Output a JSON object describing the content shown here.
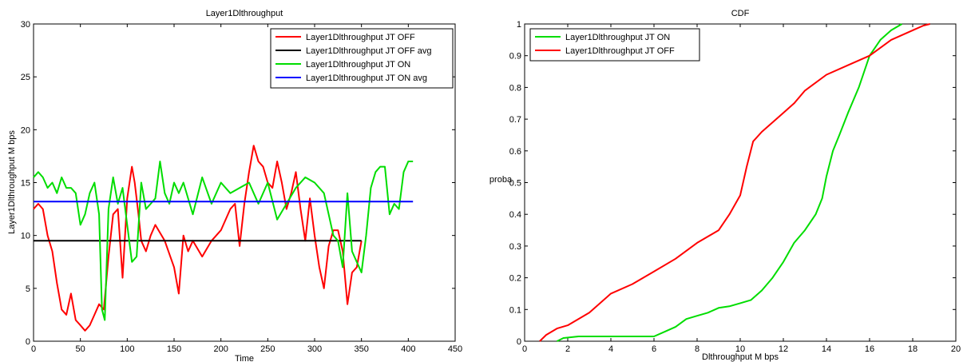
{
  "chart_data": [
    {
      "type": "line",
      "title": "Layer1Dlthroughput",
      "xlabel": "Time",
      "ylabel": "Layer1Dlthroughput M bps",
      "xlim": [
        0,
        450
      ],
      "ylim": [
        0,
        30
      ],
      "xticks": [
        "0",
        "50",
        "100",
        "150",
        "200",
        "250",
        "300",
        "350",
        "400",
        "450"
      ],
      "yticks": [
        "0",
        "5",
        "10",
        "15",
        "20",
        "25",
        "30"
      ],
      "grid": false,
      "legend_position": "top-right",
      "series": [
        {
          "name": "Layer1Dlthroughput JT OFF",
          "color": "#ff0000",
          "x": [
            0,
            5,
            10,
            15,
            20,
            25,
            30,
            35,
            40,
            45,
            50,
            55,
            60,
            65,
            70,
            75,
            80,
            85,
            90,
            95,
            100,
            105,
            108,
            112,
            115,
            120,
            125,
            130,
            140,
            150,
            155,
            160,
            165,
            170,
            180,
            190,
            200,
            210,
            215,
            220,
            225,
            230,
            235,
            240,
            245,
            250,
            255,
            260,
            265,
            270,
            275,
            280,
            285,
            290,
            295,
            300,
            305,
            310,
            315,
            320,
            325,
            330,
            335,
            340,
            345,
            350
          ],
          "values": [
            12.5,
            13.0,
            12.5,
            10.0,
            8.5,
            5.5,
            3.0,
            2.5,
            4.5,
            2.0,
            1.5,
            1.0,
            1.5,
            2.5,
            3.5,
            3.0,
            8.0,
            12.0,
            12.5,
            6.0,
            13.5,
            16.5,
            15.0,
            12.0,
            9.5,
            8.5,
            10.0,
            11.0,
            9.5,
            7.0,
            4.5,
            10.0,
            8.5,
            9.5,
            8.0,
            9.5,
            10.5,
            12.5,
            13.0,
            9.0,
            13.0,
            16.0,
            18.5,
            17.0,
            16.5,
            15.0,
            14.5,
            17.0,
            15.0,
            12.5,
            14.0,
            16.0,
            12.5,
            9.5,
            13.5,
            10.0,
            7.0,
            5.0,
            9.0,
            10.5,
            10.5,
            8.5,
            3.5,
            6.5,
            7.0,
            9.5
          ]
        },
        {
          "name": "Layer1Dlthroughput JT OFF avg",
          "color": "#000000",
          "x": [
            0,
            350
          ],
          "values": [
            9.5,
            9.5
          ]
        },
        {
          "name": "Layer1Dlthroughput JT ON",
          "color": "#00dd00",
          "x": [
            0,
            5,
            10,
            15,
            20,
            25,
            30,
            35,
            40,
            45,
            50,
            55,
            60,
            65,
            70,
            73,
            76,
            80,
            85,
            90,
            95,
            100,
            105,
            110,
            115,
            120,
            125,
            130,
            135,
            140,
            145,
            150,
            155,
            160,
            170,
            180,
            190,
            200,
            210,
            220,
            230,
            240,
            250,
            260,
            270,
            280,
            290,
            300,
            310,
            320,
            325,
            330,
            335,
            340,
            345,
            350,
            355,
            360,
            365,
            370,
            375,
            380,
            385,
            390,
            395,
            400,
            405
          ],
          "values": [
            15.5,
            16.0,
            15.5,
            14.5,
            15.0,
            14.0,
            15.5,
            14.5,
            14.5,
            14.0,
            11.0,
            12.0,
            14.0,
            15.0,
            12.0,
            3.0,
            2.0,
            12.5,
            15.5,
            13.0,
            14.5,
            11.0,
            7.5,
            8.0,
            15.0,
            12.5,
            13.0,
            13.5,
            17.0,
            14.0,
            13.0,
            15.0,
            14.0,
            15.0,
            12.0,
            15.5,
            13.0,
            15.0,
            14.0,
            14.5,
            15.0,
            13.0,
            15.0,
            11.5,
            13.0,
            14.5,
            15.5,
            15.0,
            14.0,
            10.0,
            9.5,
            7.0,
            14.0,
            8.5,
            7.5,
            6.5,
            10.0,
            14.5,
            16.0,
            16.5,
            16.5,
            12.0,
            13.0,
            12.5,
            16.0,
            17.0,
            17.0
          ]
        },
        {
          "name": "Layer1Dlthroughput JT ON avg",
          "color": "#0000ff",
          "x": [
            0,
            405
          ],
          "values": [
            13.2,
            13.2
          ]
        }
      ]
    },
    {
      "type": "line",
      "title": "CDF",
      "xlabel": "Dlthroughput   M bps",
      "ylabel": "proba",
      "xlim": [
        0,
        20
      ],
      "ylim": [
        0,
        1
      ],
      "xticks": [
        "0",
        "2",
        "4",
        "6",
        "8",
        "10",
        "12",
        "14",
        "16",
        "18",
        "20"
      ],
      "yticks": [
        "0",
        "0.1",
        "0.2",
        "0.3",
        "0.4",
        "0.5",
        "0.6",
        "0.7",
        "0.8",
        "0.9",
        "1"
      ],
      "grid": false,
      "legend_position": "top-left",
      "series": [
        {
          "name": "Layer1Dlthroughput JT ON",
          "color": "#00dd00",
          "x": [
            1.5,
            1.8,
            2.5,
            4.0,
            6.0,
            6.5,
            7.0,
            7.5,
            8.0,
            8.5,
            9.0,
            9.5,
            10.0,
            10.5,
            11.0,
            11.5,
            12.0,
            12.5,
            13.0,
            13.5,
            13.8,
            14.0,
            14.3,
            14.6,
            15.0,
            15.5,
            16.0,
            16.5,
            17.0,
            17.5
          ],
          "values": [
            0.0,
            0.01,
            0.015,
            0.015,
            0.015,
            0.03,
            0.045,
            0.07,
            0.08,
            0.09,
            0.105,
            0.11,
            0.12,
            0.13,
            0.16,
            0.2,
            0.25,
            0.31,
            0.35,
            0.4,
            0.45,
            0.52,
            0.6,
            0.65,
            0.72,
            0.8,
            0.9,
            0.95,
            0.98,
            1.0
          ]
        },
        {
          "name": "Layer1Dlthroughput JT OFF",
          "color": "#ff0000",
          "x": [
            0.7,
            1.0,
            1.5,
            2.0,
            3.0,
            4.0,
            5.0,
            6.0,
            7.0,
            8.0,
            9.0,
            9.5,
            10.0,
            10.3,
            10.6,
            11.0,
            12.0,
            12.5,
            13.0,
            14.0,
            15.0,
            16.0,
            17.0,
            18.0,
            18.5,
            18.8
          ],
          "values": [
            0.0,
            0.02,
            0.04,
            0.05,
            0.09,
            0.15,
            0.18,
            0.22,
            0.26,
            0.31,
            0.35,
            0.4,
            0.46,
            0.55,
            0.63,
            0.66,
            0.72,
            0.75,
            0.79,
            0.84,
            0.87,
            0.9,
            0.95,
            0.98,
            0.995,
            1.0
          ]
        }
      ]
    }
  ]
}
